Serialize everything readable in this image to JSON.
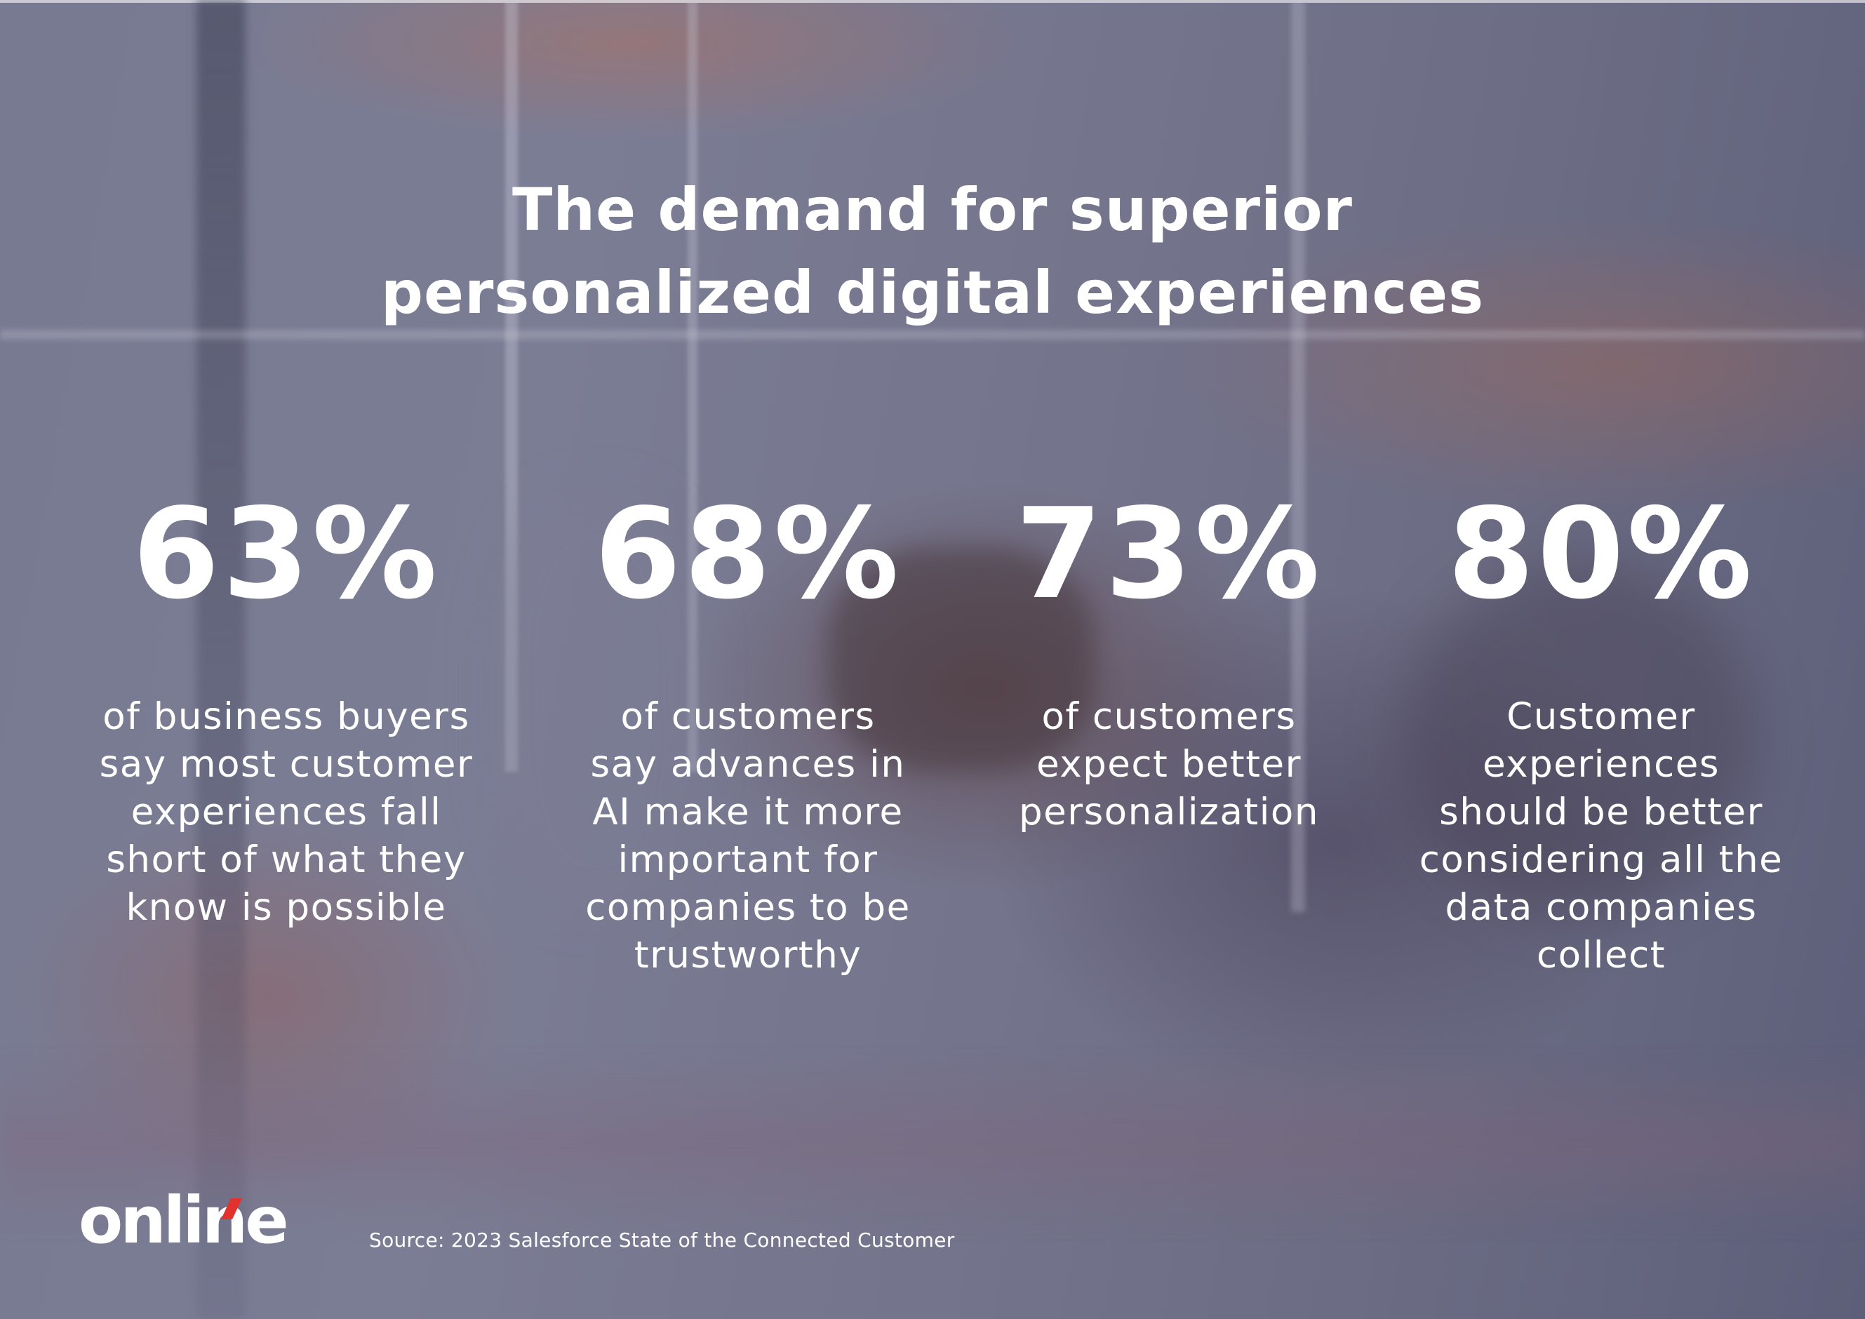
{
  "title": {
    "line1": "The demand for superior",
    "line2": "personalized digital experiences"
  },
  "stats": [
    {
      "value": "63%",
      "description": "of business buyers\nsay most customer\nexperiences fall\nshort of what they\nknow is possible"
    },
    {
      "value": "68%",
      "description": "of customers\nsay advances in\nAI make it more\nimportant for\ncompanies to be\ntrustworthy"
    },
    {
      "value": "73%",
      "description": "of customers\nexpect better\npersonalization"
    },
    {
      "value": "80%",
      "description": "Customer\nexperiences\nshould be better\nconsidering all the\ndata companies\ncollect"
    }
  ],
  "logo": {
    "text": "online",
    "accent_color": "#e2322d"
  },
  "source": "Source: 2023 Salesforce State of the Connected Customer"
}
